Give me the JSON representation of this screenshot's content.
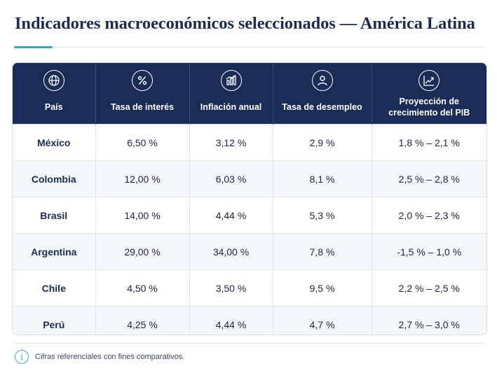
{
  "title": "Indicadores macroeconómicos seleccionados — América Latina",
  "colors": {
    "header": "#1b2c57",
    "accent": "#3aa8bd",
    "title": "#1c2b4f"
  },
  "columns": [
    {
      "label": "País",
      "icon": "globe-icon"
    },
    {
      "label": "Tasa de interés",
      "icon": "percent-icon"
    },
    {
      "label": "Inflación anual",
      "icon": "bar-chart-icon"
    },
    {
      "label": "Tasa de desempleo",
      "icon": "person-icon"
    },
    {
      "label": "Proyección de crecimiento del PIB",
      "icon": "trend-up-icon"
    }
  ],
  "rows": [
    [
      "México",
      "6,50 %",
      "3,12 %",
      "2,9 %",
      "1,8 % – 2,1 %"
    ],
    [
      "Colombia",
      "12,00 %",
      "6,03 %",
      "8,1 %",
      "2,5 % – 2,8 %"
    ],
    [
      "Brasil",
      "14,00 %",
      "4,44 %",
      "5,3 %",
      "2,0 % – 2,3 %"
    ],
    [
      "Argentina",
      "29,00 %",
      "34,00 %",
      "7,8 %",
      "-1,5 % – 1,0 %"
    ],
    [
      "Chile",
      "4,50 %",
      "3,50 %",
      "9,5 %",
      "2,2 % – 2,5 %"
    ],
    [
      "Perú",
      "4,25 %",
      "4,44 %",
      "4,7 %",
      "2,7 % – 3,0 %"
    ]
  ],
  "footnote": {
    "icon": "info-icon",
    "glyph": "i",
    "text": "Cifras referenciales con fines comparativos."
  }
}
